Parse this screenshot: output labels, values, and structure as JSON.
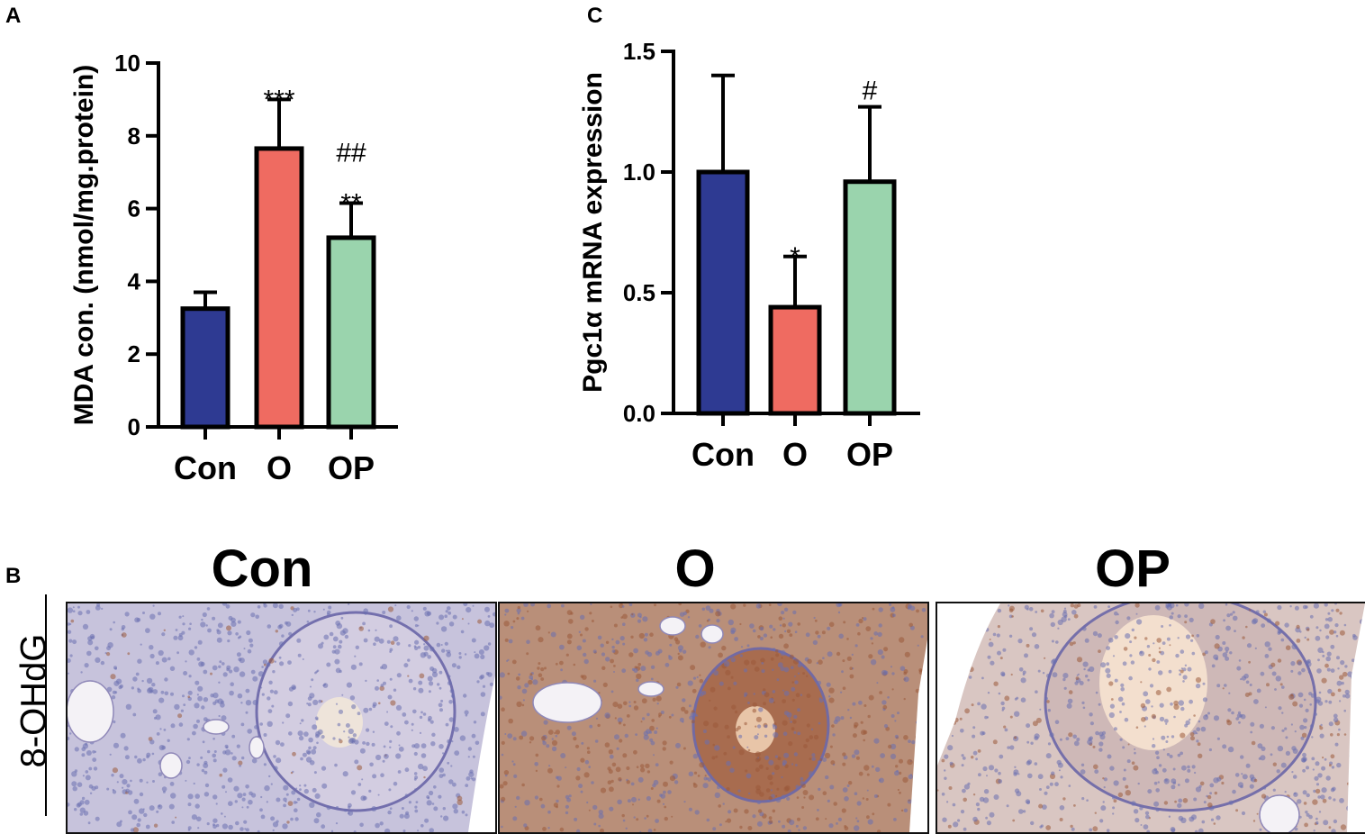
{
  "panels": {
    "a_letter": "A",
    "b_letter": "B",
    "c_letter": "C"
  },
  "chart_data": [
    {
      "id": "A",
      "type": "bar",
      "categories": [
        "Con",
        "O",
        "OP"
      ],
      "values": [
        3.25,
        7.65,
        5.2
      ],
      "errors": [
        0.45,
        1.35,
        0.95
      ],
      "colors": [
        "#2e3a92",
        "#ef6b61",
        "#9ad4ad"
      ],
      "significance": [
        [],
        [
          "***"
        ],
        [
          "##",
          "**"
        ]
      ],
      "ylabel": "MDA con. (nmol/mg.protein)",
      "ylim": [
        0,
        10
      ],
      "yticks": [
        "0",
        "2",
        "4",
        "6",
        "8",
        "10"
      ],
      "grid": false
    },
    {
      "id": "C",
      "type": "bar",
      "categories": [
        "Con",
        "O",
        "OP"
      ],
      "values": [
        1.0,
        0.44,
        0.96
      ],
      "errors": [
        0.4,
        0.21,
        0.31
      ],
      "colors": [
        "#2e3a92",
        "#ef6b61",
        "#9ad4ad"
      ],
      "significance": [
        [],
        [
          "*"
        ],
        [
          "#"
        ]
      ],
      "ylabel": "Pgc1α mRNA expression",
      "ylim": [
        0,
        1.5
      ],
      "yticks": [
        "0.0",
        "0.5",
        "1.0",
        "1.5"
      ],
      "grid": false
    }
  ],
  "micrographs": {
    "row_label": "8-OHdG",
    "columns": [
      "Con",
      "O",
      "OP"
    ],
    "stain_colors": {
      "con": "#c7c3dc",
      "o": "#b98f79",
      "op": "#d9c6c2",
      "nuclei": "#6a6fb0",
      "dab": "#9a5a3a"
    }
  }
}
